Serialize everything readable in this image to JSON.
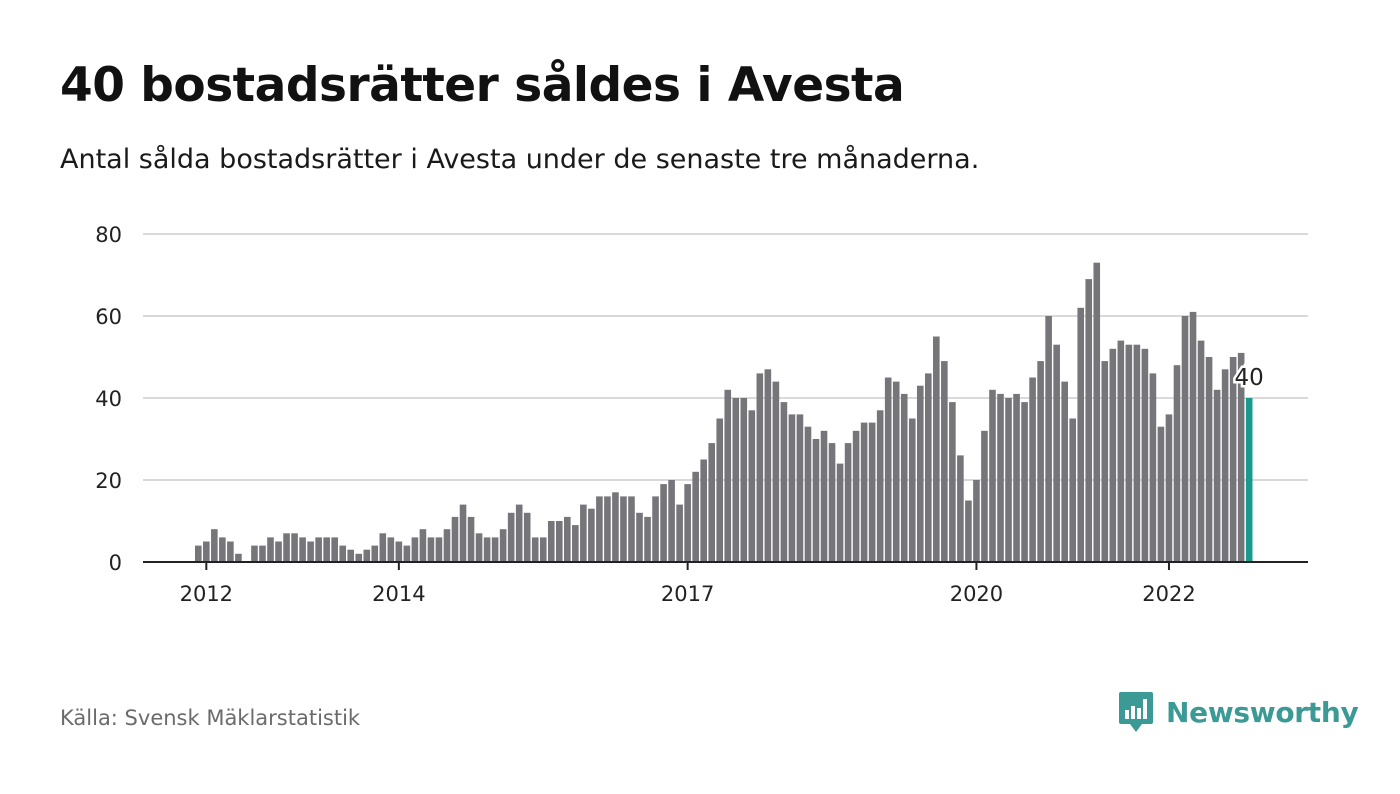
{
  "title": "40 bostadsrätter såldes i Avesta",
  "subtitle": "Antal sålda bostadsrätter i Avesta under de senaste tre månaderna.",
  "source": "Källa: Svensk Mäklarstatistik",
  "brand": {
    "name": "Newsworthy",
    "logo_icon": "bar-chart-speech-bubble-icon",
    "color": "#3b9a95"
  },
  "colors": {
    "bar": "#76757a",
    "highlight": "#1a9a8a",
    "grid": "#d9d9d9",
    "axis": "#222222"
  },
  "chart_data": {
    "type": "bar",
    "y_ticks": [
      0,
      20,
      40,
      60,
      80
    ],
    "ylim": [
      0,
      80
    ],
    "x_tick_labels": [
      {
        "label": "2012",
        "index": 1
      },
      {
        "label": "2014",
        "index": 25
      },
      {
        "label": "2017",
        "index": 61
      },
      {
        "label": "2020",
        "index": 97
      },
      {
        "label": "2022",
        "index": 121
      }
    ],
    "values": [
      4,
      5,
      8,
      6,
      5,
      2,
      0,
      4,
      4,
      6,
      5,
      7,
      7,
      6,
      5,
      6,
      6,
      6,
      4,
      3,
      2,
      3,
      4,
      7,
      6,
      5,
      4,
      6,
      8,
      6,
      6,
      8,
      11,
      14,
      11,
      7,
      6,
      6,
      8,
      12,
      14,
      12,
      6,
      6,
      10,
      10,
      11,
      9,
      14,
      13,
      16,
      16,
      17,
      16,
      16,
      12,
      11,
      16,
      19,
      20,
      14,
      19,
      22,
      25,
      29,
      35,
      42,
      40,
      40,
      37,
      46,
      47,
      44,
      39,
      36,
      36,
      33,
      30,
      32,
      29,
      24,
      29,
      32,
      34,
      34,
      37,
      45,
      44,
      41,
      35,
      43,
      46,
      55,
      49,
      39,
      26,
      15,
      20,
      32,
      42,
      41,
      40,
      41,
      39,
      45,
      49,
      60,
      53,
      44,
      35,
      62,
      69,
      73,
      49,
      52,
      54,
      53,
      53,
      52,
      46,
      33,
      36,
      48,
      60,
      61,
      54,
      50,
      42,
      47,
      50,
      51,
      40
    ],
    "highlight_index": 131,
    "highlight_label": "40",
    "grid": true
  }
}
